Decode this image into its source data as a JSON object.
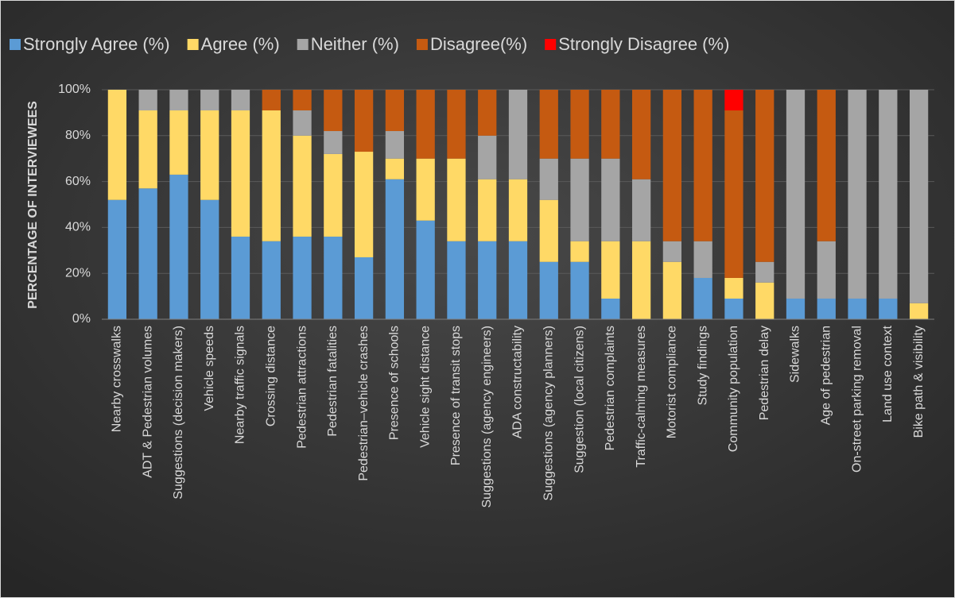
{
  "chart_data": {
    "type": "stacked_bar",
    "categories": [
      "Nearby crosswalks",
      "ADT & Pedestrian volumes",
      "Suggestions (decision makers)",
      "Vehicle speeds",
      "Nearby traffic signals",
      "Crossing distance",
      "Pedestrian attractions",
      "Pedestrian fatalities",
      "Pedestrian–vehicle crashes",
      "Presence of schools",
      "Vehicle sight distance",
      "Presence of transit stops",
      "Suggestions (agency engineers)",
      "ADA constructability",
      "Suggestions (agency planners)",
      "Suggestion (local citizens)",
      "Pedestrian complaints",
      "Traffic-calming measures",
      "Motorist compliance",
      "Study findings",
      "Community population",
      "Pedestrian delay",
      "Sidewalks",
      "Age of pedestrian",
      "On-street parking removal",
      "Land use context",
      "Bike path & visibility"
    ],
    "series": [
      {
        "name": "Strongly Agree (%)",
        "color": "#5b9bd5",
        "values": [
          52,
          57,
          63,
          52,
          36,
          34,
          36,
          36,
          27,
          61,
          43,
          34,
          34,
          34,
          25,
          25,
          9,
          0,
          0,
          18,
          9,
          0,
          9,
          9,
          9,
          9,
          0
        ]
      },
      {
        "name": "Agree (%)",
        "color": "#ffd966",
        "values": [
          48,
          34,
          28,
          39,
          55,
          57,
          44,
          36,
          46,
          9,
          27,
          36,
          27,
          27,
          27,
          9,
          25,
          34,
          25,
          0,
          9,
          16,
          0,
          0,
          0,
          0,
          7
        ]
      },
      {
        "name": "Neither (%)",
        "color": "#a5a5a5",
        "values": [
          0,
          9,
          9,
          9,
          9,
          0,
          11,
          10,
          0,
          12,
          0,
          0,
          19,
          39,
          18,
          36,
          36,
          27,
          9,
          16,
          0,
          9,
          91,
          25,
          91,
          91,
          93
        ]
      },
      {
        "name": "Disagree(%)",
        "color": "#c55a11",
        "values": [
          0,
          0,
          0,
          0,
          0,
          9,
          9,
          18,
          27,
          18,
          30,
          30,
          20,
          0,
          30,
          30,
          30,
          39,
          66,
          66,
          73,
          75,
          0,
          66,
          0,
          0,
          0
        ]
      },
      {
        "name": "Strongly Disagree (%)",
        "color": "#ff0000",
        "values": [
          0,
          0,
          0,
          0,
          0,
          0,
          0,
          0,
          0,
          0,
          0,
          0,
          0,
          0,
          0,
          0,
          0,
          0,
          0,
          0,
          9,
          0,
          0,
          0,
          0,
          0,
          0
        ]
      }
    ],
    "ylabel": "PERCENTAGE OF INTERVIEWEES",
    "ylim": [
      0,
      100
    ],
    "yticks": [
      {
        "value": 0,
        "label": "0%"
      },
      {
        "value": 20,
        "label": "20%"
      },
      {
        "value": 40,
        "label": "40%"
      },
      {
        "value": 60,
        "label": "60%"
      },
      {
        "value": 80,
        "label": "80%"
      },
      {
        "value": 100,
        "label": "100%"
      }
    ],
    "grid": true,
    "legend": "top"
  }
}
